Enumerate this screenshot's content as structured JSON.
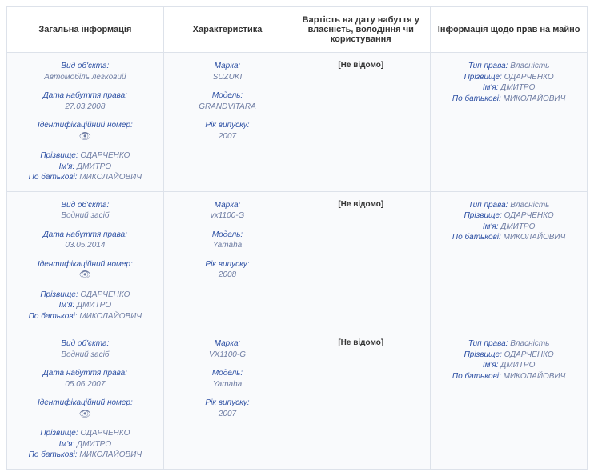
{
  "columns": [
    "Загальна інформація",
    "Характеристика",
    "Вартість на дату набуття у власність, володіння чи користування",
    "Інформація щодо прав на майно"
  ],
  "col_widths_pct": [
    27,
    22,
    24,
    27
  ],
  "colors": {
    "label": "#2c4fa3",
    "value": "#6f7da3",
    "border": "#dde2ea",
    "cell_bg": "#f9fafc",
    "header_text": "#333333",
    "unknown_text": "#333333"
  },
  "labels": {
    "object_type": "Вид об'єкта:",
    "acq_date": "Дата набуття права:",
    "id_number": "Ідентифікаційний номер:",
    "surname": "Прізвище:",
    "name": "Ім'я:",
    "patronymic": "По батькові:",
    "brand": "Марка:",
    "model": "Модель:",
    "year": "Рік випуску:",
    "right_type": "Тип права:"
  },
  "id_icon_glyph": "👁",
  "unknown_text": "[Не відомо]",
  "rows": [
    {
      "general": {
        "object_type": "Автомобіль легковий",
        "acq_date": "27.03.2008",
        "id_has_value": false,
        "surname": "ОДАРЧЕНКО",
        "name": "ДМИТРО",
        "patronymic": "МИКОЛАЙОВИЧ"
      },
      "char": {
        "brand": "SUZUKI",
        "model": "GRANDVITARA",
        "year": "2007"
      },
      "cost": null,
      "rights": {
        "right_type": "Власність",
        "surname": "ОДАРЧЕНКО",
        "name": "ДМИТРО",
        "patronymic": "МИКОЛАЙОВИЧ"
      }
    },
    {
      "general": {
        "object_type": "Водний засіб",
        "acq_date": "03.05.2014",
        "id_has_value": false,
        "surname": "ОДАРЧЕНКО",
        "name": "ДМИТРО",
        "patronymic": "МИКОЛАЙОВИЧ"
      },
      "char": {
        "brand": "vx1100-G",
        "model": "Yamaha",
        "year": "2008"
      },
      "cost": null,
      "rights": {
        "right_type": "Власність",
        "surname": "ОДАРЧЕНКО",
        "name": "ДМИТРО",
        "patronymic": "МИКОЛАЙОВИЧ"
      }
    },
    {
      "general": {
        "object_type": "Водний засіб",
        "acq_date": "05.06.2007",
        "id_has_value": false,
        "surname": "ОДАРЧЕНКО",
        "name": "ДМИТРО",
        "patronymic": "МИКОЛАЙОВИЧ"
      },
      "char": {
        "brand": "VX1100-G",
        "model": "Yamaha",
        "year": "2007"
      },
      "cost": null,
      "rights": {
        "right_type": "Власність",
        "surname": "ОДАРЧЕНКО",
        "name": "ДМИТРО",
        "patronymic": "МИКОЛАЙОВИЧ"
      }
    }
  ]
}
